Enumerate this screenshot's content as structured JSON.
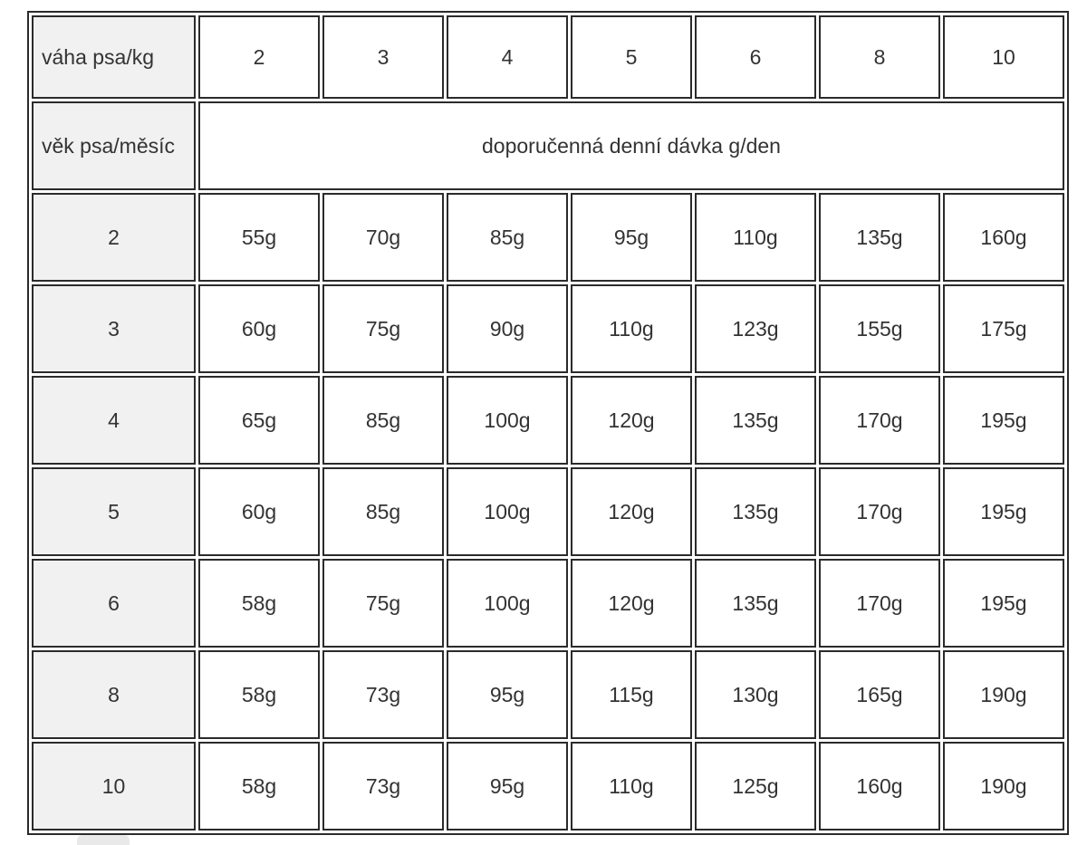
{
  "table": {
    "header": {
      "weight_label": "váha psa/kg",
      "age_label": "věk psa/měsíc",
      "dose_label": "doporučenná denní dávka g/den"
    },
    "colors": {
      "border": "#2b2b2b",
      "header_bg": "#f1f1f1",
      "cell_bg": "#ffffff",
      "text": "#333333"
    }
  },
  "chart_data": {
    "type": "table",
    "title": "doporučenná denní dávka g/den",
    "col_header_label": "váha psa/kg",
    "row_header_label": "věk psa/měsíc",
    "columns_weight_kg": [
      "2",
      "3",
      "4",
      "5",
      "6",
      "8",
      "10"
    ],
    "rows": [
      {
        "age_months": "2",
        "doses_g": [
          "55g",
          "70g",
          "85g",
          "95g",
          "110g",
          "135g",
          "160g"
        ]
      },
      {
        "age_months": "3",
        "doses_g": [
          "60g",
          "75g",
          "90g",
          "110g",
          "123g",
          "155g",
          "175g"
        ]
      },
      {
        "age_months": "4",
        "doses_g": [
          "65g",
          "85g",
          "100g",
          "120g",
          "135g",
          "170g",
          "195g"
        ]
      },
      {
        "age_months": "5",
        "doses_g": [
          "60g",
          "85g",
          "100g",
          "120g",
          "135g",
          "170g",
          "195g"
        ]
      },
      {
        "age_months": "6",
        "doses_g": [
          "58g",
          "75g",
          "100g",
          "120g",
          "135g",
          "170g",
          "195g"
        ]
      },
      {
        "age_months": "8",
        "doses_g": [
          "58g",
          "73g",
          "95g",
          "115g",
          "130g",
          "165g",
          "190g"
        ]
      },
      {
        "age_months": "10",
        "doses_g": [
          "58g",
          "73g",
          "95g",
          "110g",
          "125g",
          "160g",
          "190g"
        ]
      }
    ]
  }
}
